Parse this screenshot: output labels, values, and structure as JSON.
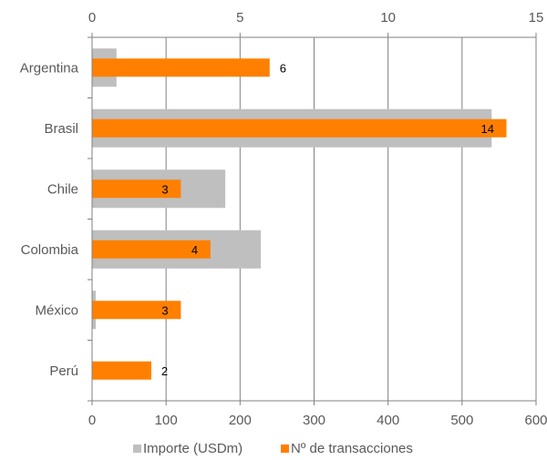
{
  "chart_data": {
    "type": "bar",
    "orientation": "horizontal",
    "categories": [
      "Argentina",
      "Brasil",
      "Chile",
      "Colombia",
      "México",
      "Perú"
    ],
    "series": [
      {
        "name": "Importe (USDm)",
        "axis": "bottom",
        "color": "#BFBFBF",
        "values": [
          33,
          540,
          180,
          228,
          5,
          0
        ]
      },
      {
        "name": "Nº de transacciones",
        "axis": "top",
        "color": "#FF8000",
        "values": [
          6,
          14,
          3,
          4,
          3,
          2
        ],
        "labels": [
          "6",
          "14",
          "3",
          "4",
          "3",
          "2"
        ]
      }
    ],
    "bottom_axis": {
      "min": 0,
      "max": 600,
      "ticks": [
        "0",
        "100",
        "200",
        "300",
        "400",
        "500",
        "600"
      ]
    },
    "top_axis": {
      "min": 0,
      "max": 15,
      "ticks": [
        "0",
        "5",
        "10",
        "15"
      ]
    },
    "grid": true,
    "legend_position": "bottom"
  }
}
